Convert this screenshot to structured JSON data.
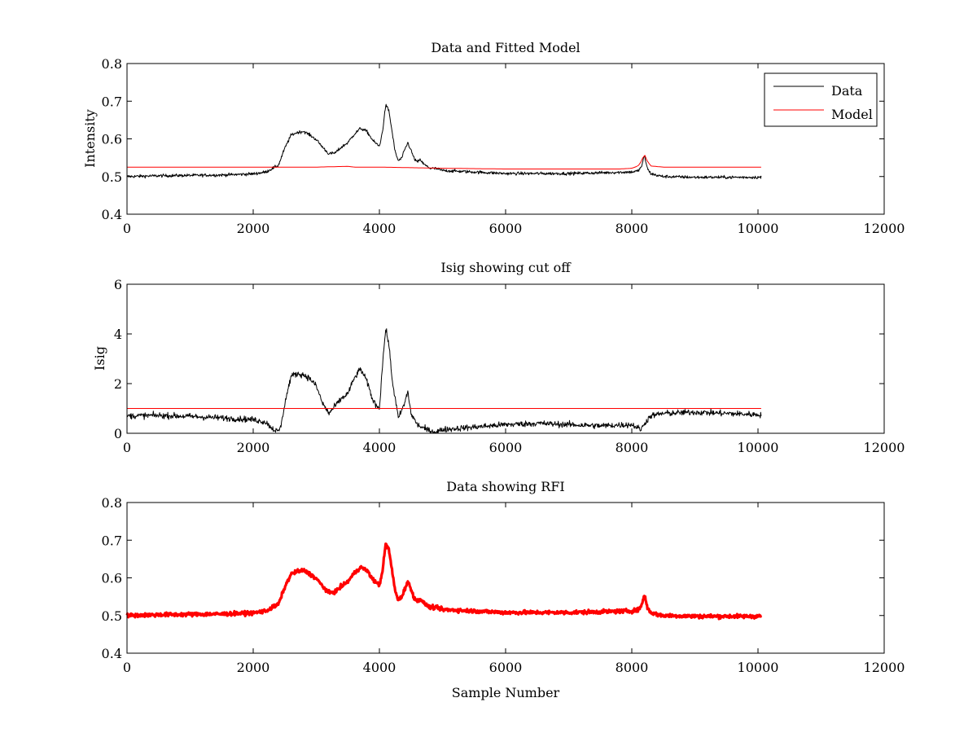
{
  "figure": {
    "background": "#ffffff"
  },
  "chart_data": [
    {
      "type": "line",
      "title": "Data and Fitted Model",
      "xlabel": "",
      "ylabel": "Intensity",
      "xlim": [
        0,
        12000
      ],
      "ylim": [
        0.4,
        0.8
      ],
      "xticks": [
        0,
        2000,
        4000,
        6000,
        8000,
        10000,
        12000
      ],
      "xtick_labels": [
        "0",
        "2000",
        "4000",
        "6000",
        "8000",
        "10000",
        "12000"
      ],
      "yticks": [
        0.4,
        0.5,
        0.6,
        0.7,
        0.8
      ],
      "ytick_labels": [
        "0.4",
        "0.5",
        "0.6",
        "0.7",
        "0.8"
      ],
      "legend": {
        "placement": "top-right",
        "entries": [
          "Data",
          "Model"
        ]
      },
      "series": [
        {
          "name": "Data",
          "color": "#000000",
          "noise": 0.004,
          "x": [
            0,
            500,
            1000,
            1500,
            2000,
            2200,
            2400,
            2500,
            2600,
            2700,
            2800,
            2900,
            3000,
            3100,
            3200,
            3300,
            3400,
            3500,
            3600,
            3700,
            3800,
            3900,
            4000,
            4050,
            4100,
            4150,
            4200,
            4250,
            4300,
            4350,
            4400,
            4450,
            4500,
            4550,
            4600,
            4650,
            4700,
            4800,
            4900,
            5000,
            6000,
            7000,
            7500,
            8000,
            8100,
            8150,
            8200,
            8250,
            8300,
            8400,
            8500,
            9000,
            10000,
            10050
          ],
          "y": [
            0.5,
            0.502,
            0.503,
            0.504,
            0.507,
            0.512,
            0.53,
            0.575,
            0.61,
            0.617,
            0.62,
            0.61,
            0.598,
            0.578,
            0.56,
            0.563,
            0.578,
            0.59,
            0.612,
            0.628,
            0.62,
            0.595,
            0.58,
            0.62,
            0.69,
            0.675,
            0.62,
            0.565,
            0.542,
            0.548,
            0.57,
            0.59,
            0.57,
            0.548,
            0.538,
            0.545,
            0.533,
            0.522,
            0.521,
            0.516,
            0.508,
            0.508,
            0.51,
            0.512,
            0.515,
            0.525,
            0.555,
            0.52,
            0.508,
            0.503,
            0.5,
            0.498,
            0.498,
            0.498
          ]
        },
        {
          "name": "Model",
          "color": "#ff0000",
          "noise": 0,
          "x": [
            0,
            1000,
            2000,
            2400,
            3000,
            3500,
            3600,
            4000,
            5000,
            6000,
            7000,
            7800,
            8000,
            8100,
            8150,
            8200,
            8230,
            8300,
            8500,
            9000,
            10000,
            10050
          ],
          "y": [
            0.525,
            0.525,
            0.525,
            0.525,
            0.525,
            0.527,
            0.525,
            0.525,
            0.522,
            0.52,
            0.52,
            0.52,
            0.522,
            0.528,
            0.54,
            0.56,
            0.545,
            0.528,
            0.525,
            0.525,
            0.525,
            0.525
          ]
        }
      ]
    },
    {
      "type": "line",
      "title": "Isig showing cut off",
      "xlabel": "",
      "ylabel": "Isig",
      "xlim": [
        0,
        12000
      ],
      "ylim": [
        0,
        6
      ],
      "xticks": [
        0,
        2000,
        4000,
        6000,
        8000,
        10000,
        12000
      ],
      "xtick_labels": [
        "0",
        "2000",
        "4000",
        "6000",
        "8000",
        "10000",
        "12000"
      ],
      "yticks": [
        0,
        2,
        4,
        6
      ],
      "ytick_labels": [
        "0",
        "2",
        "4",
        "6"
      ],
      "series": [
        {
          "color": "#000000",
          "noise": 0.12,
          "x": [
            0,
            500,
            1000,
            1500,
            2000,
            2200,
            2300,
            2400,
            2450,
            2500,
            2600,
            2700,
            2800,
            2900,
            3000,
            3100,
            3200,
            3300,
            3400,
            3500,
            3600,
            3700,
            3800,
            3900,
            4000,
            4050,
            4100,
            4150,
            4200,
            4300,
            4350,
            4400,
            4450,
            4500,
            4600,
            4700,
            4800,
            4900,
            5000,
            5500,
            6000,
            6500,
            7000,
            7500,
            8000,
            8150,
            8200,
            8300,
            8500,
            9000,
            10000,
            10050
          ],
          "y": [
            0.7,
            0.72,
            0.68,
            0.62,
            0.55,
            0.45,
            0.2,
            0.05,
            0.4,
            1.2,
            2.3,
            2.4,
            2.35,
            2.2,
            1.9,
            1.2,
            0.8,
            1.1,
            1.4,
            1.6,
            2.2,
            2.6,
            2.1,
            1.3,
            1.0,
            2.8,
            4.2,
            3.6,
            2.2,
            0.6,
            0.9,
            1.2,
            1.7,
            0.8,
            0.35,
            0.2,
            0.1,
            0.05,
            0.15,
            0.25,
            0.35,
            0.4,
            0.35,
            0.3,
            0.35,
            0.15,
            0.4,
            0.7,
            0.8,
            0.85,
            0.75,
            0.75
          ]
        },
        {
          "color": "#ff0000",
          "noise": 0,
          "x": [
            0,
            10050
          ],
          "y": [
            1.0,
            1.0
          ]
        }
      ]
    },
    {
      "type": "line",
      "title": "Data showing RFI",
      "xlabel": "Sample Number",
      "ylabel": "",
      "xlim": [
        0,
        12000
      ],
      "ylim": [
        0.4,
        0.8
      ],
      "xticks": [
        0,
        2000,
        4000,
        6000,
        8000,
        10000,
        12000
      ],
      "xtick_labels": [
        "0",
        "2000",
        "4000",
        "6000",
        "8000",
        "10000",
        "12000"
      ],
      "yticks": [
        0.4,
        0.5,
        0.6,
        0.7,
        0.8
      ],
      "ytick_labels": [
        "0.4",
        "0.5",
        "0.6",
        "0.7",
        "0.8"
      ],
      "series": [
        {
          "color": "#ff0000",
          "noise": 0.005,
          "line_style": "thick",
          "x": [
            0,
            500,
            1000,
            1500,
            2000,
            2200,
            2400,
            2500,
            2600,
            2700,
            2800,
            2900,
            3000,
            3100,
            3200,
            3300,
            3400,
            3500,
            3600,
            3700,
            3800,
            3900,
            4000,
            4050,
            4100,
            4150,
            4200,
            4250,
            4300,
            4350,
            4400,
            4450,
            4500,
            4550,
            4600,
            4650,
            4700,
            4800,
            4900,
            5000,
            6000,
            7000,
            7500,
            8000,
            8100,
            8150,
            8200,
            8250,
            8300,
            8400,
            8500,
            9000,
            10000,
            10050
          ],
          "y": [
            0.5,
            0.502,
            0.503,
            0.504,
            0.507,
            0.512,
            0.53,
            0.575,
            0.61,
            0.617,
            0.62,
            0.61,
            0.598,
            0.578,
            0.56,
            0.563,
            0.578,
            0.59,
            0.612,
            0.628,
            0.62,
            0.595,
            0.58,
            0.62,
            0.69,
            0.675,
            0.62,
            0.565,
            0.542,
            0.548,
            0.57,
            0.59,
            0.57,
            0.548,
            0.538,
            0.545,
            0.533,
            0.522,
            0.521,
            0.516,
            0.508,
            0.508,
            0.51,
            0.512,
            0.515,
            0.525,
            0.555,
            0.52,
            0.508,
            0.503,
            0.5,
            0.498,
            0.498,
            0.498
          ]
        }
      ]
    }
  ]
}
